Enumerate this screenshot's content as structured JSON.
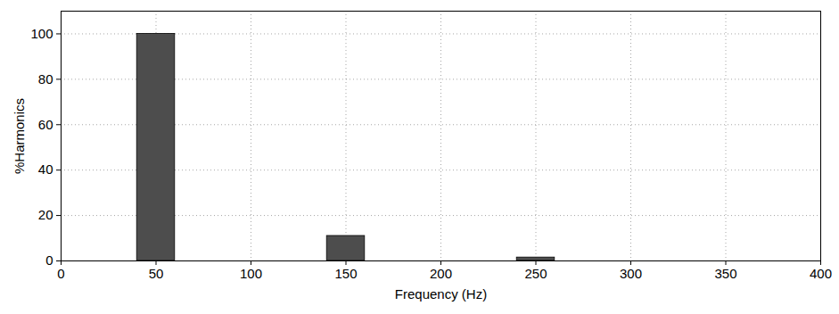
{
  "chart_data": {
    "type": "bar",
    "x": [
      50,
      150,
      250
    ],
    "values": [
      100,
      11,
      1.5
    ],
    "color": "#4d4d4d",
    "xlabel": "Frequency (Hz)",
    "ylabel": "%Harmonics",
    "xlim": [
      0,
      400
    ],
    "xticks": [
      0,
      50,
      100,
      150,
      200,
      250,
      300,
      350,
      400
    ],
    "ylim": [
      0,
      110
    ],
    "yticks": [
      0,
      20,
      40,
      60,
      80,
      100
    ],
    "grid": true
  }
}
